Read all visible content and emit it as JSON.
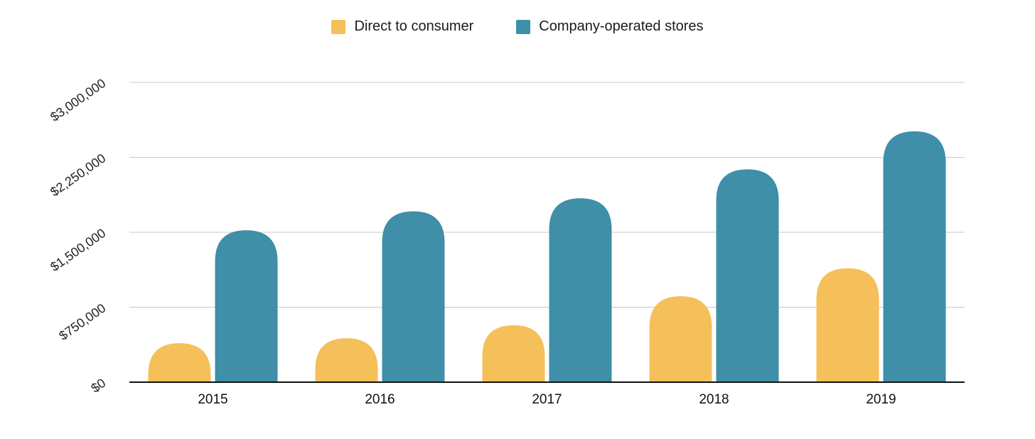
{
  "chart_data": {
    "type": "bar",
    "categories": [
      "2015",
      "2016",
      "2017",
      "2018",
      "2019"
    ],
    "series": [
      {
        "name": "Direct to consumer",
        "color": "#F5C05A",
        "values": [
          390000,
          440000,
          570000,
          860000,
          1140000
        ]
      },
      {
        "name": "Company-operated stores",
        "color": "#3E8FA7",
        "values": [
          1520000,
          1710000,
          1840000,
          2130000,
          2510000
        ]
      }
    ],
    "y_ticks": [
      "$0",
      "$750,000",
      "$1,500,000",
      "$2,250,000",
      "$3,000,000"
    ],
    "ylim": [
      0,
      3000000
    ],
    "legend_position": "top-center",
    "grid": true
  }
}
